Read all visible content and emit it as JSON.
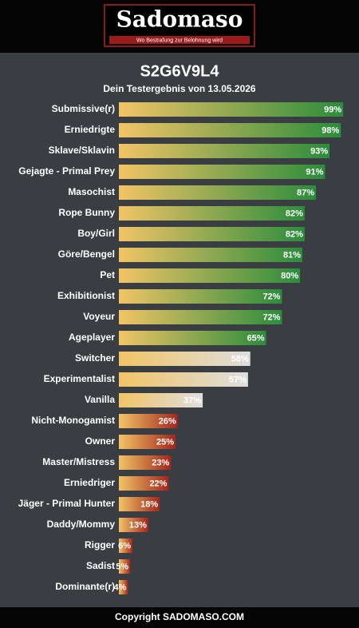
{
  "header": {
    "logo": "Sadomaso",
    "tagline": "Wo Bestrafung zur Belohnung wird"
  },
  "chart_data": {
    "type": "bar",
    "orientation": "horizontal",
    "title": "S2G6V9L4",
    "subtitle": "Dein Testergebnis von 13.05.2026",
    "categories": [
      "Submissive(r)",
      "Erniedrigte",
      "Sklave/Sklavin",
      "Gejagte - Primal Prey",
      "Masochist",
      "Rope Bunny",
      "Boy/Girl",
      "Göre/Bengel",
      "Pet",
      "Exhibitionist",
      "Voyeur",
      "Ageplayer",
      "Switcher",
      "Experimentalist",
      "Vanilla",
      "Nicht-Monogamist",
      "Owner",
      "Master/Mistress",
      "Erniedriger",
      "Jäger - Primal Hunter",
      "Daddy/Mommy",
      "Rigger",
      "Sadist",
      "Dominante(r)"
    ],
    "values": [
      99,
      98,
      93,
      91,
      87,
      82,
      82,
      81,
      80,
      72,
      72,
      65,
      58,
      57,
      37,
      26,
      25,
      23,
      22,
      18,
      13,
      6,
      5,
      4
    ],
    "value_labels": [
      "99%",
      "98%",
      "93%",
      "91%",
      "87%",
      "82%",
      "82%",
      "81%",
      "80%",
      "72%",
      "72%",
      "65%",
      "58%",
      "57%",
      "37%",
      "26%",
      "25%",
      "23%",
      "22%",
      "18%",
      "13%",
      "6%",
      "5%",
      "4%"
    ],
    "colors": [
      "#2b8c3c",
      "#2b8c3c",
      "#2b8c3c",
      "#2b8c3c",
      "#2b8c3c",
      "#2b8c3c",
      "#2b8c3c",
      "#2b8c3c",
      "#2b8c3c",
      "#2b8c3c",
      "#2b8c3c",
      "#2b8c3c",
      "#dedede",
      "#dedede",
      "#dedede",
      "#a3261c",
      "#a3261c",
      "#a3261c",
      "#a3261c",
      "#a3261c",
      "#a3261c",
      "#a3261c",
      "#a3261c",
      "#a3261c"
    ],
    "gradient_start": "#f2c466",
    "xlim": [
      0,
      100
    ]
  },
  "footer": "Copyright SADOMASO.COM"
}
